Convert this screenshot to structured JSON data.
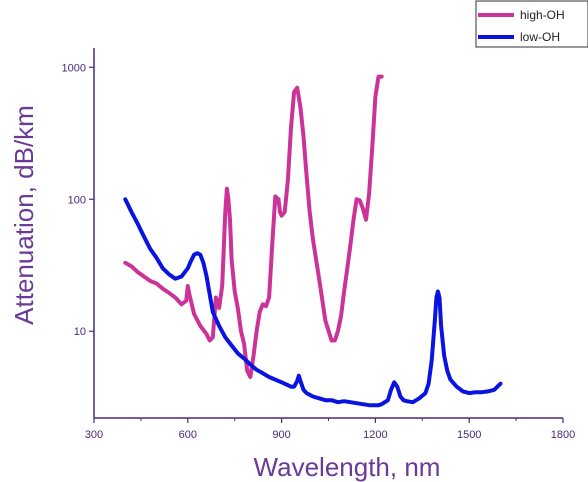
{
  "chart_data": {
    "type": "line",
    "xlabel": "Wavelength, nm",
    "ylabel": "Attenuation, dB/km",
    "x_scale": "linear",
    "y_scale": "log",
    "xlim": [
      300,
      1800
    ],
    "ylim": [
      2.2,
      1400
    ],
    "x_ticks": [
      300,
      600,
      900,
      1200,
      1500,
      1800
    ],
    "x_tick_labels": [
      "300",
      "600",
      "900",
      "1200",
      "1500",
      "1800"
    ],
    "y_ticks": [
      10,
      100,
      1000
    ],
    "y_tick_labels": [
      "10",
      "100",
      "1000"
    ],
    "legend_position": "top-right",
    "axis_color": "#4a2a7a",
    "series": [
      {
        "name": "high-OH",
        "color": "#cc3399",
        "x": [
          400,
          420,
          440,
          460,
          480,
          500,
          520,
          540,
          560,
          580,
          595,
          600,
          605,
          620,
          640,
          660,
          670,
          680,
          690,
          700,
          710,
          720,
          725,
          730,
          735,
          740,
          750,
          760,
          770,
          780,
          790,
          800,
          810,
          820,
          830,
          840,
          850,
          860,
          870,
          880,
          890,
          895,
          900,
          910,
          920,
          930,
          940,
          950,
          960,
          970,
          980,
          990,
          1000,
          1020,
          1040,
          1060,
          1070,
          1080,
          1090,
          1100,
          1110,
          1120,
          1130,
          1140,
          1150,
          1160,
          1170,
          1180,
          1190,
          1200,
          1210,
          1220
        ],
        "values": [
          33,
          31,
          28,
          26,
          24,
          23,
          21,
          19.5,
          18,
          16,
          17,
          22,
          19,
          13.5,
          11,
          9.5,
          8.5,
          9,
          18,
          15,
          22,
          80,
          120,
          100,
          70,
          35,
          20,
          15,
          10,
          8,
          5,
          4.5,
          6.5,
          10,
          14,
          16,
          15.5,
          18,
          45,
          105,
          100,
          80,
          75,
          80,
          140,
          350,
          650,
          700,
          500,
          300,
          150,
          80,
          50,
          25,
          12,
          8.5,
          8.5,
          10,
          13,
          20,
          30,
          45,
          70,
          100,
          98,
          85,
          70,
          110,
          250,
          600,
          850,
          850
        ]
      },
      {
        "name": "low-OH",
        "color": "#0a14e0",
        "x": [
          400,
          420,
          440,
          460,
          480,
          500,
          520,
          540,
          560,
          580,
          600,
          610,
          620,
          630,
          640,
          650,
          660,
          670,
          680,
          700,
          720,
          740,
          760,
          780,
          800,
          820,
          840,
          860,
          880,
          900,
          920,
          930,
          940,
          950,
          955,
          960,
          970,
          980,
          1000,
          1020,
          1040,
          1060,
          1080,
          1100,
          1120,
          1140,
          1160,
          1180,
          1200,
          1210,
          1220,
          1240,
          1250,
          1260,
          1270,
          1280,
          1290,
          1300,
          1320,
          1340,
          1360,
          1370,
          1380,
          1390,
          1395,
          1400,
          1405,
          1410,
          1420,
          1430,
          1440,
          1460,
          1480,
          1500,
          1520,
          1540,
          1560,
          1580,
          1600
        ],
        "values": [
          100,
          80,
          65,
          52,
          42,
          36,
          30,
          27,
          25,
          26,
          30,
          34,
          38,
          39,
          38,
          33,
          26,
          19,
          14,
          11,
          9,
          7.8,
          6.8,
          6.2,
          5.6,
          5.1,
          4.8,
          4.5,
          4.3,
          4.1,
          3.9,
          3.8,
          3.8,
          4.2,
          4.6,
          4.2,
          3.6,
          3.4,
          3.2,
          3.1,
          3.0,
          3.0,
          2.9,
          2.95,
          2.9,
          2.85,
          2.8,
          2.75,
          2.75,
          2.75,
          2.8,
          3.0,
          3.6,
          4.1,
          3.8,
          3.2,
          3.0,
          2.95,
          2.9,
          3.1,
          3.4,
          4.0,
          6.0,
          12,
          18,
          20,
          18,
          11,
          6.5,
          5,
          4.3,
          3.8,
          3.5,
          3.4,
          3.45,
          3.45,
          3.5,
          3.6,
          4.0
        ]
      }
    ]
  }
}
